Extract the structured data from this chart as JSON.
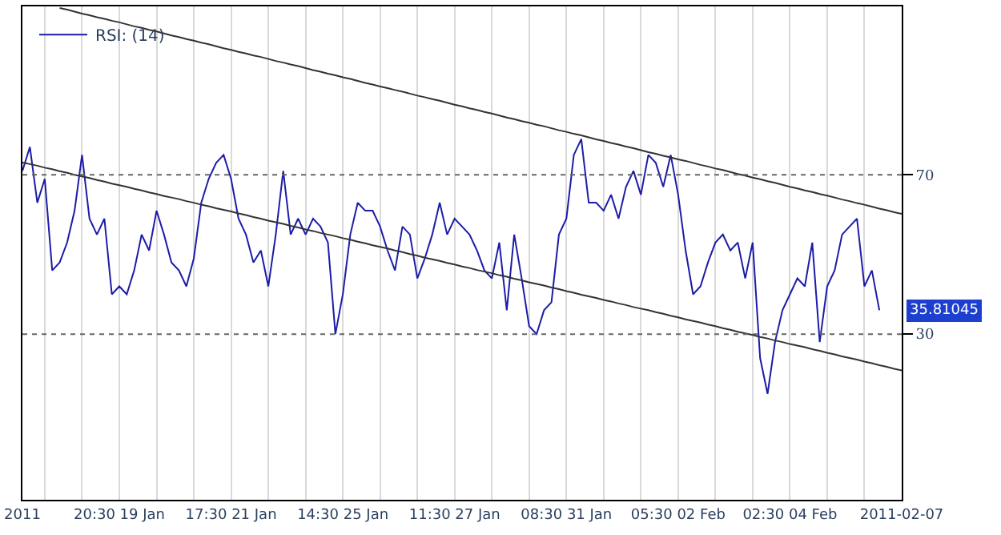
{
  "chart_data": {
    "type": "line",
    "ylim": [
      -11.6,
      112.3
    ],
    "yticks": [
      70,
      30
    ],
    "categories": [
      "2011",
      null,
      null,
      null,
      null,
      null,
      null,
      null,
      null,
      null,
      null,
      null,
      null,
      "20:30 19 Jan",
      null,
      null,
      null,
      null,
      null,
      null,
      null,
      null,
      null,
      null,
      null,
      null,
      null,
      null,
      "17:30 21 Jan",
      null,
      null,
      null,
      null,
      null,
      null,
      null,
      null,
      null,
      null,
      null,
      null,
      null,
      null,
      "14:30 25 Jan",
      null,
      null,
      null,
      null,
      null,
      null,
      null,
      null,
      null,
      null,
      null,
      null,
      null,
      null,
      "11:30 27 Jan",
      null,
      null,
      null,
      null,
      null,
      null,
      null,
      null,
      null,
      null,
      null,
      null,
      null,
      null,
      "08:30 31 Jan",
      null,
      null,
      null,
      null,
      null,
      null,
      null,
      null,
      null,
      null,
      null,
      null,
      null,
      null,
      "05:30 02 Feb",
      null,
      null,
      null,
      null,
      null,
      null,
      null,
      null,
      null,
      null,
      null,
      null,
      null,
      null,
      "02:30 04 Feb",
      null,
      null,
      null,
      null,
      null,
      null,
      null,
      null,
      null,
      null,
      null,
      null,
      null,
      null,
      "2011-02-07"
    ],
    "grid": "x",
    "legend": "top left",
    "marker": "none",
    "line_style": "solid",
    "ref_lines": [
      {
        "axis": "y",
        "value": 70,
        "color": "#666666",
        "line_style": "dotted"
      },
      {
        "axis": "y",
        "value": 30,
        "color": "#666666",
        "line_style": "dotted"
      }
    ],
    "annotations": [
      "35.81045"
    ],
    "series": [
      {
        "name": "RSI: (14)",
        "color": "#1c1ca8",
        "values": [
          71,
          77,
          63,
          69,
          46,
          48,
          53,
          61,
          75,
          59,
          55,
          59,
          40,
          42,
          40,
          46,
          55,
          51,
          61,
          55,
          48,
          46,
          42,
          49,
          63,
          69,
          73,
          75,
          69,
          59,
          55,
          48,
          51,
          42,
          55,
          71,
          55,
          59,
          55,
          59,
          57,
          53,
          30,
          40,
          55,
          63,
          61,
          61,
          57,
          51,
          46,
          57,
          55,
          44,
          49,
          55,
          63,
          55,
          59,
          57,
          55,
          51,
          46,
          44,
          53,
          36,
          55,
          44,
          32,
          30,
          36,
          38,
          55,
          59,
          75,
          79,
          63,
          63,
          61,
          65,
          59,
          67,
          71,
          65,
          75,
          73,
          67,
          75,
          65,
          51,
          40,
          42,
          48,
          53,
          55,
          51,
          53,
          44,
          53,
          24,
          15,
          28,
          36,
          40,
          44,
          42,
          53,
          28,
          42,
          46,
          55,
          57,
          59,
          42,
          46,
          36,
          null,
          null,
          null
        ]
      },
      {
        "type": "line",
        "color": "#333333",
        "values": [
          null,
          null,
          null,
          null,
          null,
          111.9,
          111.5,
          111.0,
          110.5,
          110.1,
          109.6,
          109.2,
          108.7,
          108.3,
          107.8,
          107.3,
          106.9,
          106.4,
          106.0,
          105.5,
          105.0,
          104.6,
          104.1,
          103.7,
          103.2,
          102.8,
          102.3,
          101.8,
          101.4,
          100.9,
          100.5,
          100.0,
          99.6,
          99.1,
          98.6,
          98.2,
          97.7,
          97.3,
          96.8,
          96.3,
          95.9,
          95.4,
          95.0,
          94.5,
          94.1,
          93.6,
          93.1,
          92.7,
          92.2,
          91.8,
          91.3,
          90.9,
          90.4,
          89.9,
          89.5,
          89.0,
          88.6,
          88.1,
          87.6,
          87.2,
          86.7,
          86.3,
          85.8,
          85.4,
          84.9,
          84.4,
          84.0,
          83.5,
          83.1,
          82.6,
          82.2,
          81.7,
          81.2,
          80.8,
          80.3,
          79.9,
          79.4,
          78.9,
          78.5,
          78.0,
          77.6,
          77.1,
          76.7,
          76.2,
          75.7,
          75.3,
          74.8,
          74.4,
          73.9,
          73.5,
          73.0,
          72.5,
          72.1,
          71.6,
          71.2,
          70.7,
          70.2,
          69.8,
          69.3,
          68.9,
          68.4,
          68.0,
          67.5,
          67.0,
          66.6,
          66.1,
          65.7,
          65.2,
          64.8,
          64.3,
          63.8,
          63.4,
          62.9,
          62.5,
          62.0,
          61.5,
          61.1,
          60.6,
          60.2
        ]
      },
      {
        "type": "line",
        "color": "#333333",
        "values": [
          73.1,
          72.7,
          72.3,
          71.8,
          71.4,
          70.9,
          70.5,
          70.0,
          69.6,
          69.2,
          68.7,
          68.3,
          67.8,
          67.4,
          67.0,
          66.5,
          66.1,
          65.6,
          65.2,
          64.7,
          64.3,
          63.9,
          63.4,
          63.0,
          62.5,
          62.1,
          61.6,
          61.2,
          60.8,
          60.3,
          59.9,
          59.4,
          59.0,
          58.5,
          58.1,
          57.7,
          57.2,
          56.8,
          56.3,
          55.9,
          55.4,
          55.0,
          54.6,
          54.1,
          53.7,
          53.2,
          52.8,
          52.3,
          51.9,
          51.5,
          51.0,
          50.6,
          50.1,
          49.7,
          49.2,
          48.8,
          48.4,
          47.9,
          47.5,
          47.0,
          46.6,
          46.1,
          45.7,
          45.3,
          44.8,
          44.4,
          43.9,
          43.5,
          43.0,
          42.6,
          42.2,
          41.7,
          41.3,
          40.8,
          40.4,
          39.9,
          39.5,
          39.1,
          38.6,
          38.2,
          37.7,
          37.3,
          36.8,
          36.4,
          36.0,
          35.5,
          35.1,
          34.6,
          34.2,
          33.7,
          33.3,
          32.9,
          32.4,
          32.0,
          31.5,
          31.1,
          30.6,
          30.2,
          29.8,
          29.3,
          28.9,
          28.4,
          28.0,
          27.5,
          27.1,
          26.7,
          26.2,
          25.8,
          25.3,
          24.9,
          24.4,
          24.0,
          23.6,
          23.1,
          22.7,
          22.2,
          21.8,
          21.3,
          20.9
        ]
      }
    ]
  }
}
